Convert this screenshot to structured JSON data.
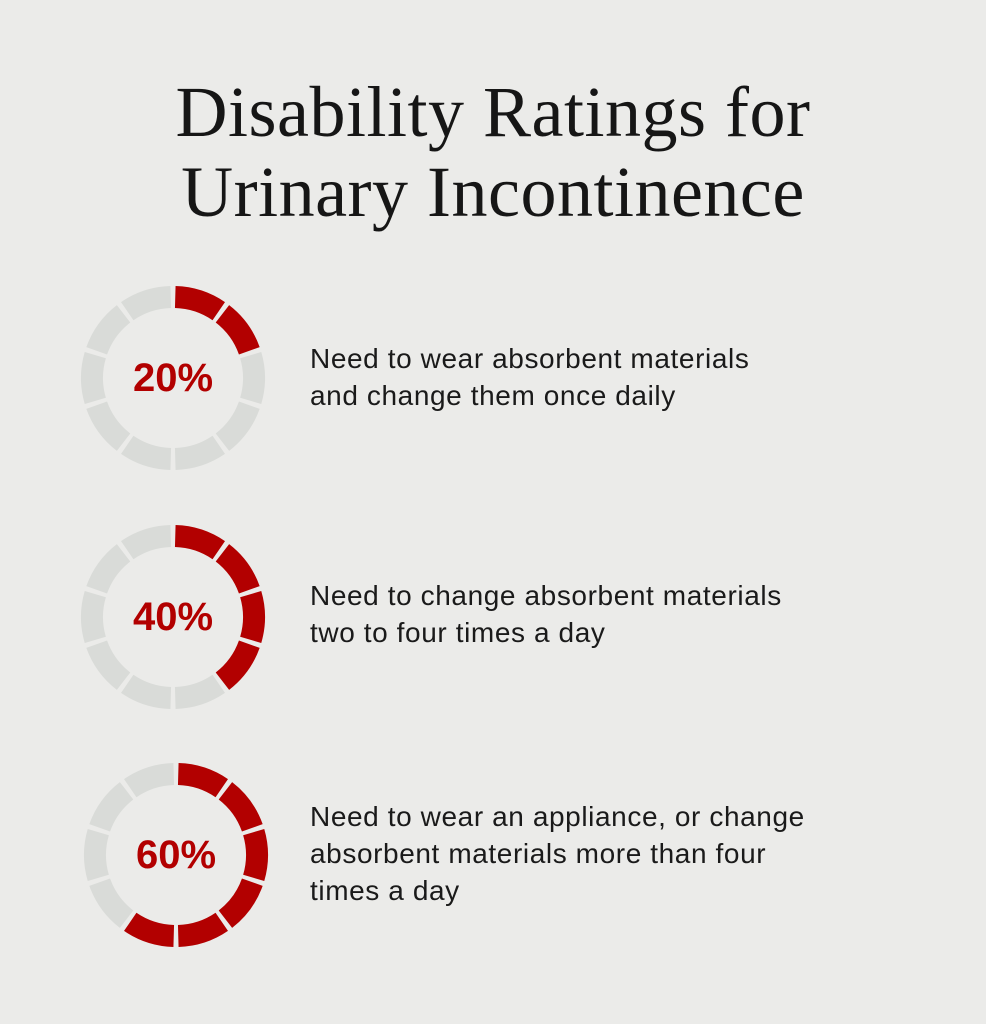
{
  "title_lines": [
    "Disability Ratings for",
    "Urinary Incontinence"
  ],
  "colors": {
    "filled": "#b20000",
    "empty": "#d9dbd8",
    "background": "#ebebe9"
  },
  "chart_data": {
    "type": "gauge",
    "segments_per_ring": 10,
    "items": [
      {
        "label": "20%",
        "value": 20,
        "description": [
          "Need to wear absorbent materials",
          "and change them once daily"
        ]
      },
      {
        "label": "40%",
        "value": 40,
        "description": [
          "Need to change absorbent materials",
          "two to four times a day"
        ]
      },
      {
        "label": "60%",
        "value": 60,
        "description": [
          "Need to wear an appliance, or change",
          "absorbent materials more than four",
          "times a day"
        ]
      }
    ]
  }
}
